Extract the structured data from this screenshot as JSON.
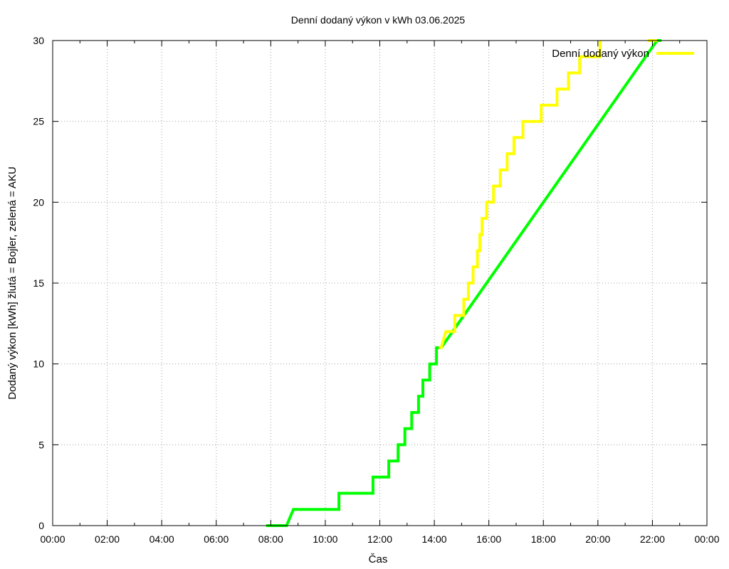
{
  "chart_data": {
    "type": "line",
    "title": "Denní dodaný výkon v kWh 03.06.2025",
    "xlabel": "Čas",
    "ylabel": "Dodaný výkon [kWh]  žlutá = Bojler, zelená = AKU",
    "x_unit": "hours of day",
    "xlim": [
      0,
      24
    ],
    "ylim": [
      0,
      30
    ],
    "x_ticks": [
      0,
      2,
      4,
      6,
      8,
      10,
      12,
      14,
      16,
      18,
      20,
      22,
      24
    ],
    "x_tick_labels": [
      "00:00",
      "02:00",
      "04:00",
      "06:00",
      "08:00",
      "10:00",
      "12:00",
      "14:00",
      "16:00",
      "18:00",
      "20:00",
      "22:00",
      "00:00"
    ],
    "y_ticks": [
      0,
      5,
      10,
      15,
      20,
      25,
      30
    ],
    "y_tick_labels": [
      "0",
      "5",
      "10",
      "15",
      "20",
      "25",
      "30"
    ],
    "grid": true,
    "legend_position": "top-right",
    "legend": [
      {
        "label": "Denní dodaný výkon",
        "color": "#ffff00"
      }
    ],
    "series": [
      {
        "color": "#00ff00",
        "style": "step-dashed",
        "points": [
          [
            7.83,
            0
          ],
          [
            8.58,
            0
          ],
          [
            8.83,
            1
          ],
          [
            10.5,
            1
          ],
          [
            10.5,
            2
          ],
          [
            11.75,
            2
          ],
          [
            11.75,
            3
          ],
          [
            12.33,
            3
          ],
          [
            12.33,
            4
          ],
          [
            12.67,
            4
          ],
          [
            12.67,
            5
          ],
          [
            12.92,
            5
          ],
          [
            12.92,
            6
          ],
          [
            13.17,
            6
          ],
          [
            13.17,
            7
          ],
          [
            13.42,
            7
          ],
          [
            13.42,
            8
          ],
          [
            13.58,
            8
          ],
          [
            13.58,
            9
          ],
          [
            13.83,
            9
          ],
          [
            13.83,
            10
          ],
          [
            14.08,
            10
          ],
          [
            14.08,
            11
          ],
          [
            14.25,
            11
          ],
          [
            22.17,
            30
          ],
          [
            22.33,
            30
          ]
        ]
      },
      {
        "color": "#ffff00",
        "style": "step",
        "points": [
          [
            14.17,
            11
          ],
          [
            14.25,
            11
          ],
          [
            14.42,
            12
          ],
          [
            14.75,
            12
          ],
          [
            14.75,
            13
          ],
          [
            15.08,
            13
          ],
          [
            15.08,
            14
          ],
          [
            15.25,
            14
          ],
          [
            15.25,
            15
          ],
          [
            15.42,
            15
          ],
          [
            15.42,
            16
          ],
          [
            15.58,
            16
          ],
          [
            15.58,
            17
          ],
          [
            15.67,
            17
          ],
          [
            15.67,
            18
          ],
          [
            15.75,
            18
          ],
          [
            15.75,
            19
          ],
          [
            15.92,
            19
          ],
          [
            15.92,
            20
          ],
          [
            16.17,
            20
          ],
          [
            16.17,
            21
          ],
          [
            16.42,
            21
          ],
          [
            16.42,
            22
          ],
          [
            16.67,
            22
          ],
          [
            16.67,
            23
          ],
          [
            16.92,
            23
          ],
          [
            16.92,
            24
          ],
          [
            17.25,
            24
          ],
          [
            17.25,
            25
          ],
          [
            17.92,
            25
          ],
          [
            17.92,
            26
          ],
          [
            18.5,
            26
          ],
          [
            18.5,
            27
          ],
          [
            18.92,
            27
          ],
          [
            18.92,
            28
          ],
          [
            19.33,
            28
          ],
          [
            19.33,
            29
          ],
          [
            20.08,
            29
          ],
          [
            20.08,
            30
          ],
          [
            20.08,
            30
          ]
        ]
      },
      {
        "color": "#ffff00",
        "style": "step",
        "points": [
          [
            21.83,
            30
          ],
          [
            22.17,
            30
          ]
        ]
      }
    ]
  }
}
